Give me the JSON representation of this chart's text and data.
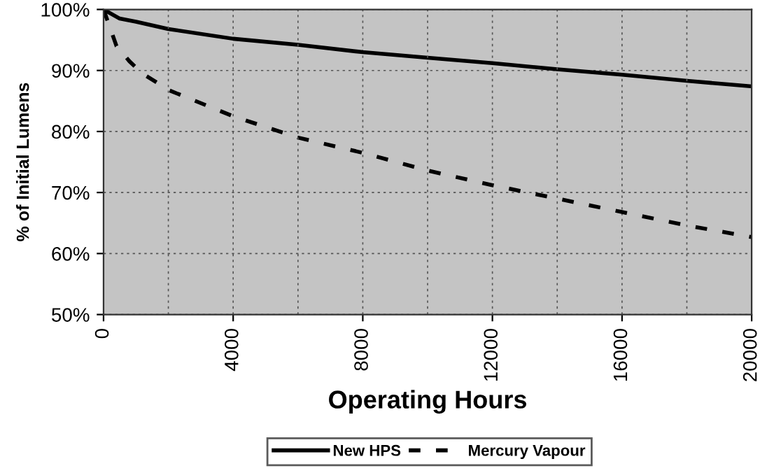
{
  "chart_data": {
    "type": "line",
    "xlabel": "Operating Hours",
    "ylabel": "% of Initial Lumens",
    "xlim": [
      0,
      20000
    ],
    "xticks": [
      0,
      4000,
      8000,
      12000,
      16000,
      20000
    ],
    "ylim": [
      50,
      100
    ],
    "yticks": [
      {
        "value": 50,
        "label": "50%"
      },
      {
        "value": 60,
        "label": "60%"
      },
      {
        "value": 70,
        "label": "70%"
      },
      {
        "value": 80,
        "label": "80%"
      },
      {
        "value": 90,
        "label": "90%"
      },
      {
        "value": 100,
        "label": "100%"
      }
    ],
    "grid": true,
    "legend": "bottom",
    "marker": "none",
    "series": [
      {
        "name": "New HPS",
        "color": "#000000",
        "line_style": "solid",
        "x": [
          0,
          500,
          1000,
          2000,
          4000,
          6000,
          8000,
          10000,
          12000,
          14000,
          16000,
          18000,
          20000
        ],
        "values": [
          100,
          98.5,
          98,
          96.8,
          95.2,
          94.2,
          93,
          92.1,
          91.2,
          90.2,
          89.3,
          88.3,
          87.4
        ]
      },
      {
        "name": "Mercury Vapour",
        "color": "#000000",
        "line_style": "dashed",
        "x": [
          0,
          200,
          400,
          800,
          1200,
          1800,
          2000,
          4000,
          6000,
          8000,
          10000,
          12000,
          14000,
          16000,
          18000,
          20000
        ],
        "values": [
          100,
          97,
          94,
          91.5,
          89.5,
          87.5,
          86.8,
          82.5,
          79,
          76.5,
          73.6,
          71.2,
          69,
          66.8,
          64.6,
          62.7
        ]
      }
    ]
  }
}
